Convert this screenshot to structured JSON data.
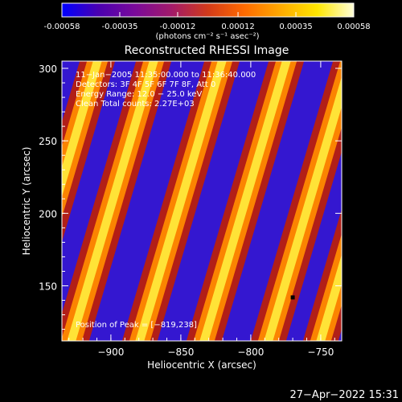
{
  "colorbar": {
    "tick_labels": [
      "-0.00058",
      "-0.00035",
      "-0.00012",
      "0.00012",
      "0.00035",
      "0.00058"
    ],
    "tick_values": [
      -0.00058,
      -0.00035,
      -0.00012,
      0.00012,
      0.00035,
      0.00058
    ],
    "range": [
      -0.00058,
      0.00058
    ],
    "unit_label": "(photons cm⁻² s⁻¹ asec⁻²)",
    "gradient_colors": [
      "#0000ff",
      "#4a00b0",
      "#7a0a9a",
      "#a21a6a",
      "#d23a1a",
      "#ff6a00",
      "#ffaa00",
      "#ffe600",
      "#ffffd8"
    ]
  },
  "chart_data": {
    "type": "heatmap",
    "title": "Reconstructed RHESSI Image",
    "xlabel": "Heliocentric X (arcsec)",
    "ylabel": "Heliocentric Y (arcsec)",
    "xlim": [
      -935,
      -735
    ],
    "ylim": [
      112,
      305
    ],
    "x_ticks": [
      -900,
      -850,
      -800,
      -750
    ],
    "x_tick_labels": [
      "−900",
      "−850",
      "−800",
      "−750"
    ],
    "y_ticks": [
      150,
      200,
      250,
      300
    ],
    "y_tick_labels": [
      "150",
      "200",
      "250",
      "300"
    ],
    "pattern": "diagonal fringe stripes of alternating positive and negative flux",
    "annotations": [
      "11−Jan−2005 11:35:00.000 to 11:36:40.000",
      "Detectors: 3F 4F 5F 6F 7F 8F, Att 0",
      "Energy Range: 12.0 − 25.0 keV",
      "Clean    Total counts: 2.27E+03"
    ],
    "peak_label": "Position of Peak = [−819,238]",
    "peak": [
      -819,
      238
    ]
  },
  "footer": {
    "timestamp": "27−Apr−2022 15:31"
  }
}
